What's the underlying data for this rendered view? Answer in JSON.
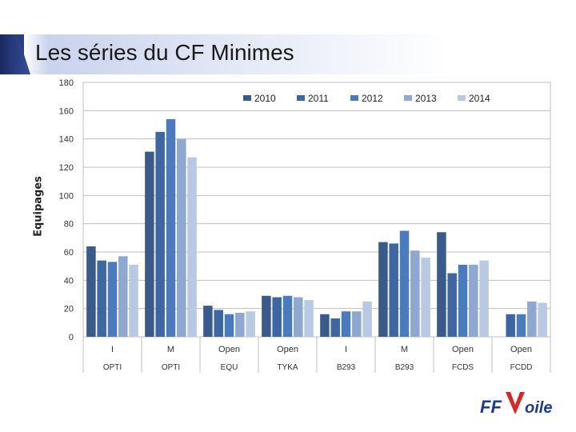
{
  "header": {
    "title": "Les séries du CF Minimes"
  },
  "chart_data": {
    "type": "bar",
    "ylabel": "Equipages",
    "ylim": [
      0,
      180
    ],
    "yticks": [
      "0",
      "20",
      "40",
      "60",
      "80",
      "100",
      "120",
      "140",
      "160",
      "180"
    ],
    "grid": true,
    "legend_position": "top-right",
    "categories": [
      {
        "label": "I",
        "group": "OPTI"
      },
      {
        "label": "M",
        "group": "OPTI"
      },
      {
        "label": "Open",
        "group": "EQU"
      },
      {
        "label": "Open",
        "group": "TYKA"
      },
      {
        "label": "I",
        "group": "B293"
      },
      {
        "label": "M",
        "group": "B293"
      },
      {
        "label": "Open",
        "group": "FCDS"
      },
      {
        "label": "Open",
        "group": "FCDD"
      }
    ],
    "series": [
      {
        "name": "2010",
        "color": "#3b5a8c",
        "values": [
          64,
          131,
          22,
          29,
          16,
          67,
          74,
          null
        ]
      },
      {
        "name": "2011",
        "color": "#3e66a3",
        "values": [
          54,
          145,
          19,
          28,
          13,
          66,
          45,
          16
        ]
      },
      {
        "name": "2012",
        "color": "#4a7bbf",
        "values": [
          53,
          154,
          16,
          29,
          18,
          75,
          51,
          16
        ]
      },
      {
        "name": "2013",
        "color": "#8ea8d2",
        "values": [
          57,
          140,
          17,
          28,
          18,
          61,
          51,
          25
        ]
      },
      {
        "name": "2014",
        "color": "#b9c9e4",
        "values": [
          51,
          127,
          18,
          26,
          25,
          56,
          54,
          24
        ]
      }
    ]
  },
  "logo": {
    "text": "FFVoile",
    "colors": {
      "ff": "#1f3a93",
      "v": "#d62828"
    }
  }
}
